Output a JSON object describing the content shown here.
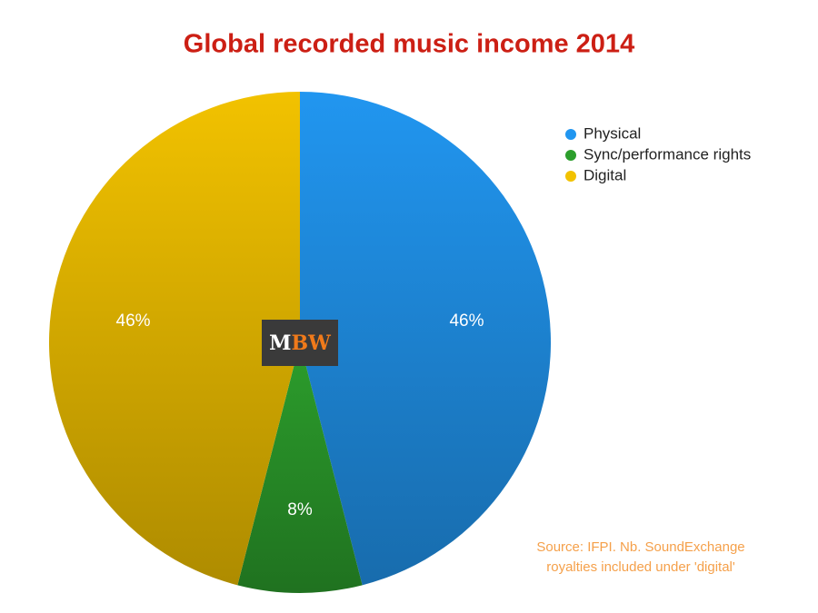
{
  "chart_data": {
    "type": "pie",
    "title": "Global recorded music income 2014",
    "categories": [
      "Physical",
      "Sync/performance rights",
      "Digital"
    ],
    "values": [
      46,
      8,
      46
    ],
    "value_labels": [
      "46%",
      "8%",
      "46%"
    ],
    "colors": [
      "#2196f0",
      "#2c9e2c",
      "#f2c200"
    ],
    "legend": "top-right",
    "logo": [
      "M",
      "BW"
    ],
    "source": [
      "Source: IFPI.  Nb. SoundExchange",
      "royalties included under 'digital'"
    ]
  }
}
